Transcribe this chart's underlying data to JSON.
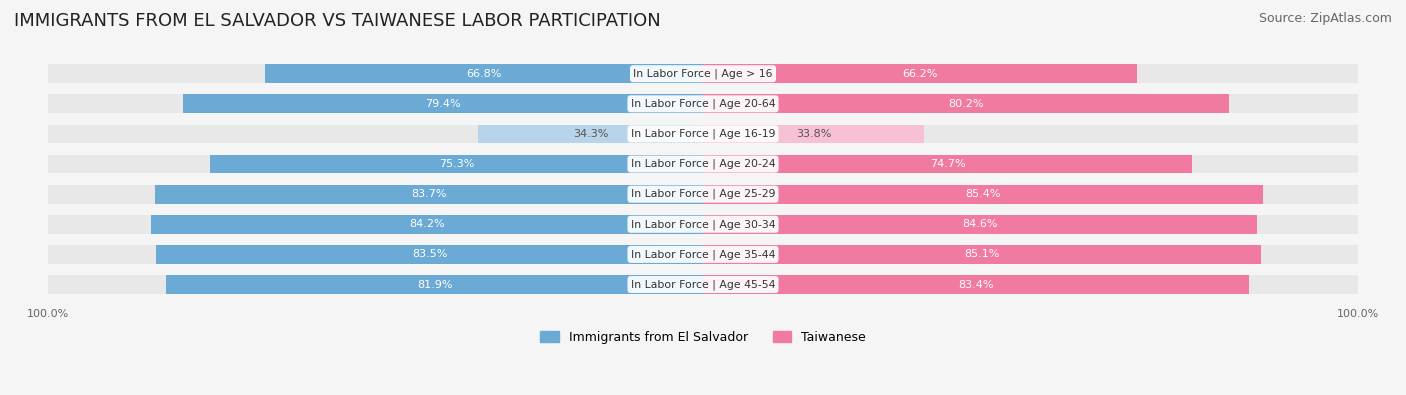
{
  "title": "IMMIGRANTS FROM EL SALVADOR VS TAIWANESE LABOR PARTICIPATION",
  "source": "Source: ZipAtlas.com",
  "categories": [
    "In Labor Force | Age > 16",
    "In Labor Force | Age 20-64",
    "In Labor Force | Age 16-19",
    "In Labor Force | Age 20-24",
    "In Labor Force | Age 25-29",
    "In Labor Force | Age 30-34",
    "In Labor Force | Age 35-44",
    "In Labor Force | Age 45-54"
  ],
  "el_salvador_values": [
    66.8,
    79.4,
    34.3,
    75.3,
    83.7,
    84.2,
    83.5,
    81.9
  ],
  "taiwanese_values": [
    66.2,
    80.2,
    33.8,
    74.7,
    85.4,
    84.6,
    85.1,
    83.4
  ],
  "el_salvador_color_full": "#6aaad4",
  "el_salvador_color_light": "#b8d4ea",
  "taiwanese_color_full": "#f07aa0",
  "taiwanese_color_light": "#f7c0d4",
  "label_color_dark": "#555555",
  "bg_color": "#f5f5f5",
  "bar_bg_color": "#e8e8e8",
  "title_fontsize": 13,
  "source_fontsize": 9,
  "label_fontsize": 8.5,
  "value_fontsize": 8,
  "max_value": 100.0,
  "legend_label_salvador": "Immigrants from El Salvador",
  "legend_label_taiwanese": "Taiwanese"
}
